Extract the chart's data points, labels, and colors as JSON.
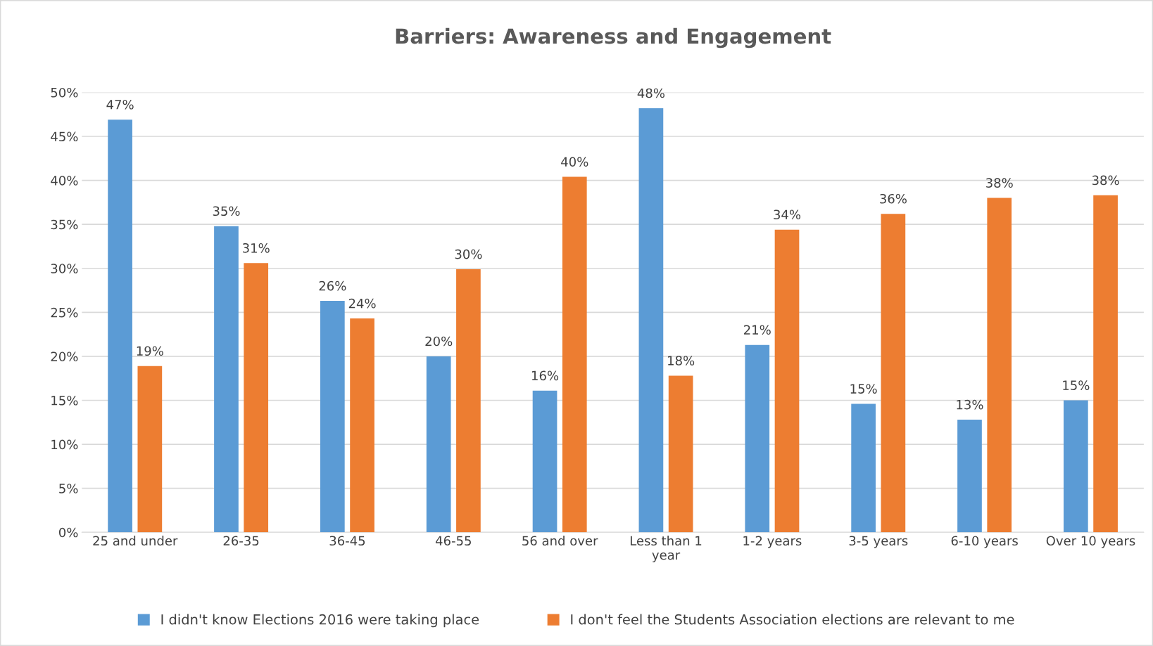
{
  "chart_data": {
    "type": "bar",
    "title": "Barriers: Awareness and Engagement",
    "categories": [
      "25 and under",
      "26-35",
      "36-45",
      "46-55",
      "56 and over",
      "Less than 1\nyear",
      "1-2 years",
      "3-5 years",
      "6-10 years",
      "Over 10 years"
    ],
    "series": [
      {
        "name": "I didn't know Elections 2016 were taking place",
        "color": "#5b9bd5",
        "values": [
          46.9,
          34.8,
          26.3,
          20.0,
          16.1,
          48.2,
          21.3,
          14.6,
          12.8,
          15.0
        ],
        "value_labels": [
          "47%",
          "35%",
          "26%",
          "20%",
          "16%",
          "48%",
          "21%",
          "15%",
          "13%",
          "15%"
        ]
      },
      {
        "name": "I don't feel the Students Association elections are relevant to me",
        "color": "#ed7d31",
        "values": [
          18.9,
          30.6,
          24.3,
          29.9,
          40.4,
          17.8,
          34.4,
          36.2,
          38.0,
          38.3
        ],
        "value_labels": [
          "19%",
          "31%",
          "24%",
          "30%",
          "40%",
          "18%",
          "34%",
          "36%",
          "38%",
          "38%"
        ]
      }
    ],
    "ylim": [
      0,
      50
    ],
    "yticks": [
      {
        "value": 0,
        "label": "0%"
      },
      {
        "value": 5,
        "label": "5%"
      },
      {
        "value": 10,
        "label": "10%"
      },
      {
        "value": 15,
        "label": "15%"
      },
      {
        "value": 20,
        "label": "20%"
      },
      {
        "value": 25,
        "label": "25%"
      },
      {
        "value": 30,
        "label": "30%"
      },
      {
        "value": 35,
        "label": "35%"
      },
      {
        "value": 40,
        "label": "40%"
      },
      {
        "value": 45,
        "label": "45%"
      },
      {
        "value": 50,
        "label": "50%"
      }
    ],
    "grid": "y",
    "legend": "bottom"
  }
}
